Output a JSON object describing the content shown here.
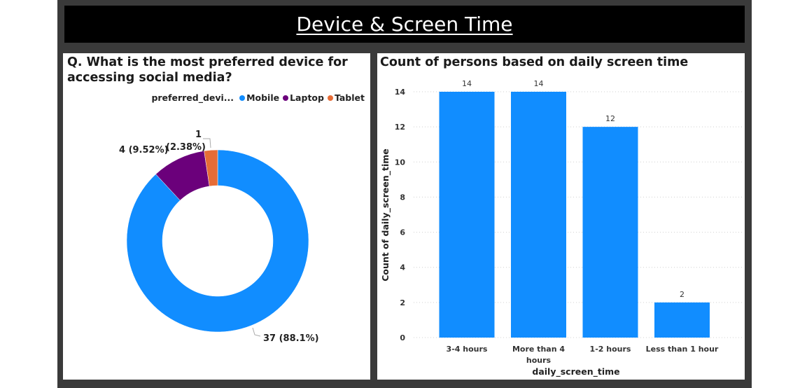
{
  "header": {
    "title": "Device & Screen Time"
  },
  "left_panel": {
    "title_line1": "Q. What is the most preferred device for",
    "title_line2": "accessing social media?",
    "legend_title": "preferred_devi..."
  },
  "right_panel": {
    "title": "Count of persons based on daily screen time"
  },
  "chart_data": [
    {
      "type": "pie",
      "variant": "donut",
      "legend_title": "preferred_devi...",
      "legend_position": "top-right",
      "slices": [
        {
          "name": "Mobile",
          "value": 37,
          "label": "37 (88.1%)",
          "color": "#118DFF"
        },
        {
          "name": "Laptop",
          "value": 4,
          "label": "4 (9.52%)",
          "color": "#6B007B"
        },
        {
          "name": "Tablet",
          "value": 1,
          "label_value": "1",
          "label_pct": "(2.38%)",
          "color": "#E66C37"
        }
      ]
    },
    {
      "type": "bar",
      "title": "Count of persons based on daily screen time",
      "categories": [
        "3-4 hours",
        "More than 4 hours",
        "1-2 hours",
        "Less than 1 hour"
      ],
      "category_lines": [
        [
          "3-4 hours"
        ],
        [
          "More than 4",
          "hours"
        ],
        [
          "1-2 hours"
        ],
        [
          "Less than 1 hour"
        ]
      ],
      "values": [
        14,
        14,
        12,
        2
      ],
      "data_labels": [
        "14",
        "14",
        "12",
        "2"
      ],
      "xlabel": "daily_screen_time",
      "ylabel": "Count of daily_screen_time",
      "ylim": [
        0,
        14
      ],
      "yticks": [
        "0",
        "2",
        "4",
        "6",
        "8",
        "10",
        "12",
        "14"
      ],
      "grid": true,
      "color": "#118DFF"
    }
  ]
}
